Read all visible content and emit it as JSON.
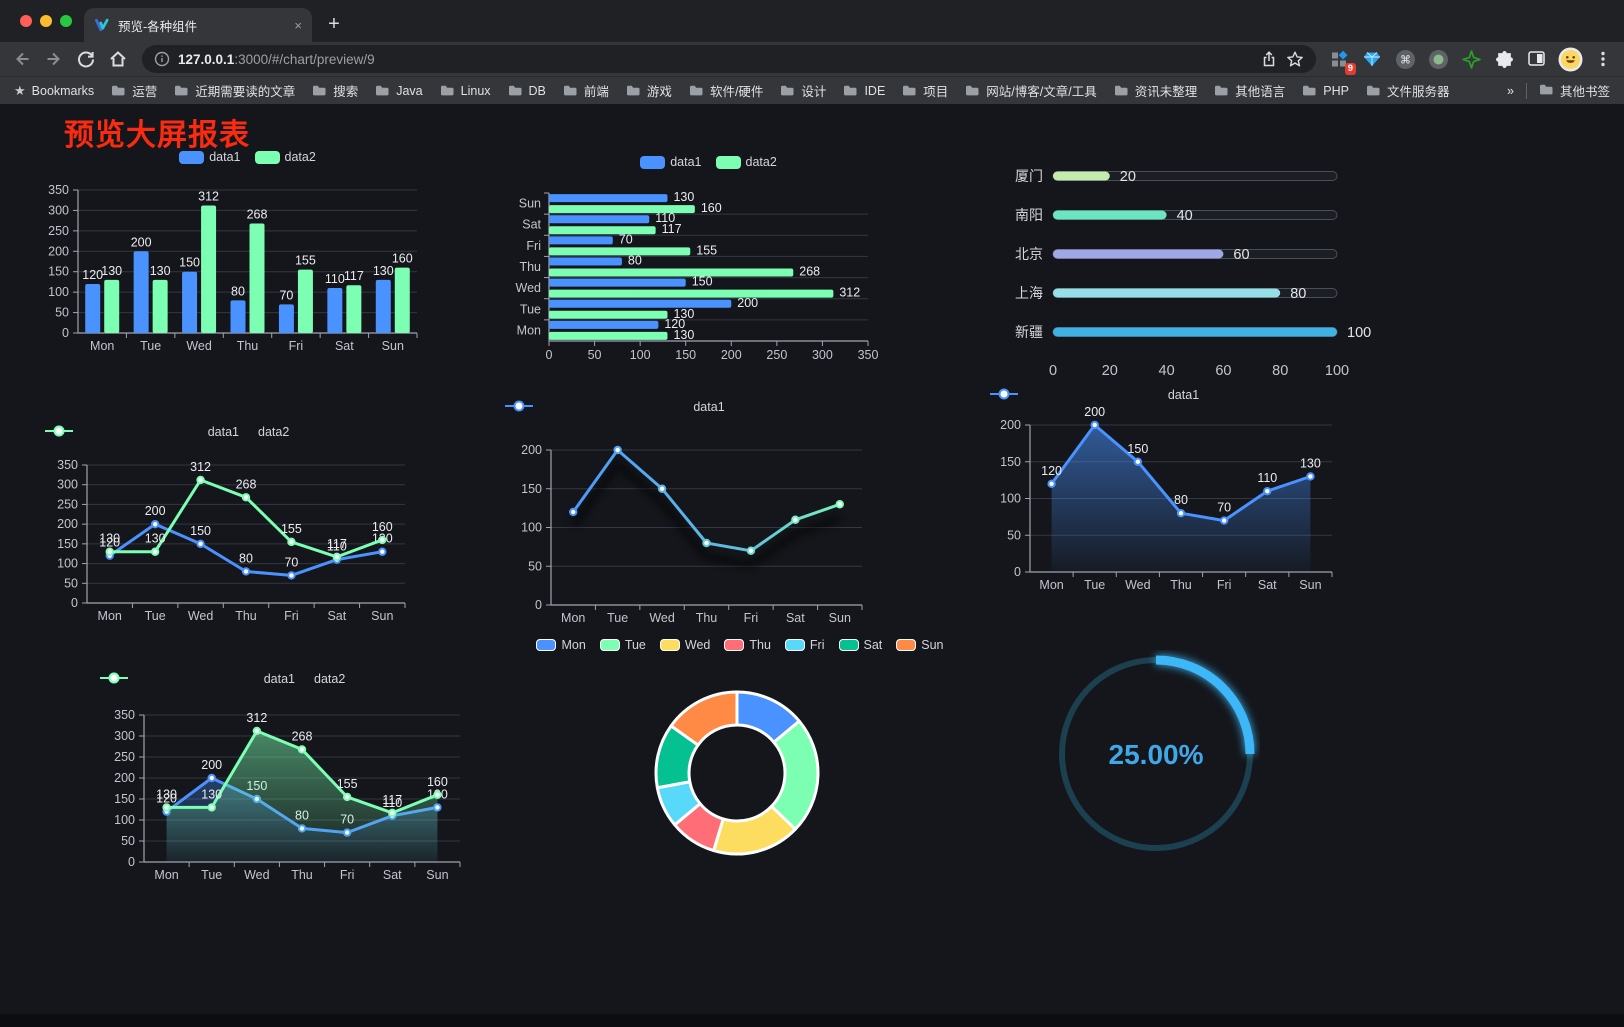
{
  "browser": {
    "traffic_lights": [
      "close",
      "minimize",
      "zoom"
    ],
    "tab": {
      "title": "预览-各种组件",
      "favicon": "v-logo-icon",
      "close_label": "×"
    },
    "new_tab_label": "+",
    "url": {
      "host": "127.0.0.1",
      "path": ":3000/#/chart/preview/9"
    },
    "nav_icons": [
      "back-arrow",
      "forward-arrow",
      "reload",
      "home"
    ],
    "urlbar_icons": [
      "info",
      "share",
      "bookmark-star"
    ],
    "action_icons": [
      {
        "name": "extension-grid",
        "badge": "9"
      },
      {
        "name": "gem"
      },
      {
        "name": "command-circle"
      },
      {
        "name": "record-circle"
      },
      {
        "name": "green-star"
      },
      {
        "name": "puzzle"
      },
      {
        "name": "reader-square"
      },
      {
        "name": "avatar-emoji"
      },
      {
        "name": "menu-kebab"
      }
    ],
    "bookmarks_bar": {
      "star_item": "Bookmarks",
      "folders": [
        "运营",
        "近期需要读的文章",
        "搜索",
        "Java",
        "Linux",
        "DB",
        "前端",
        "游戏",
        "软件/硬件",
        "设计",
        "IDE",
        "项目",
        "网站/博客/文章/工具",
        "资讯未整理",
        "其他语言",
        "PHP",
        "文件服务器"
      ],
      "overflow": "»",
      "other_bookmarks": "其他书签"
    }
  },
  "page": {
    "title": "预览大屏报表",
    "title_color": "#fa2b10",
    "background": "#14161b"
  },
  "chart_data": [
    {
      "id": "bar-vertical",
      "type": "bar",
      "categories": [
        "Mon",
        "Tue",
        "Wed",
        "Thu",
        "Fri",
        "Sat",
        "Sun"
      ],
      "series": [
        {
          "name": "data1",
          "color": "#4992ff",
          "values": [
            120,
            200,
            150,
            80,
            70,
            110,
            130
          ]
        },
        {
          "name": "data2",
          "color": "#7cffb2",
          "values": [
            130,
            130,
            312,
            268,
            155,
            117,
            160
          ]
        }
      ],
      "ylim": [
        0,
        350
      ],
      "yticks": [
        0,
        50,
        100,
        150,
        200,
        250,
        300,
        350
      ],
      "legend_position": "top",
      "grid": true,
      "value_labels": true
    },
    {
      "id": "bar-horizontal",
      "type": "bar-horizontal",
      "categories": [
        "Mon",
        "Tue",
        "Wed",
        "Thu",
        "Fri",
        "Sat",
        "Sun"
      ],
      "series": [
        {
          "name": "data1",
          "color": "#4992ff",
          "values": [
            120,
            200,
            150,
            80,
            70,
            110,
            130
          ]
        },
        {
          "name": "data2",
          "color": "#7cffb2",
          "values": [
            130,
            130,
            312,
            268,
            155,
            117,
            160
          ]
        }
      ],
      "xlim": [
        0,
        350
      ],
      "xticks": [
        0,
        50,
        100,
        150,
        200,
        250,
        300,
        350
      ],
      "legend_position": "top",
      "grid": true,
      "value_labels": true
    },
    {
      "id": "progress",
      "type": "progress-bars",
      "max": 100,
      "xticks": [
        0,
        20,
        40,
        60,
        80,
        100
      ],
      "items": [
        {
          "label": "厦门",
          "value": 20,
          "color": "#c4ebad"
        },
        {
          "label": "南阳",
          "value": 40,
          "color": "#6be6c1"
        },
        {
          "label": "北京",
          "value": 60,
          "color": "#a0a7e6"
        },
        {
          "label": "上海",
          "value": 80,
          "color": "#96dee8"
        },
        {
          "label": "新疆",
          "value": 100,
          "color": "#3fb1e3"
        }
      ]
    },
    {
      "id": "line-two",
      "type": "line",
      "categories": [
        "Mon",
        "Tue",
        "Wed",
        "Thu",
        "Fri",
        "Sat",
        "Sun"
      ],
      "series": [
        {
          "name": "data1",
          "color": "#4992ff",
          "values": [
            120,
            200,
            150,
            80,
            70,
            110,
            130
          ]
        },
        {
          "name": "data2",
          "color": "#7cffb2",
          "values": [
            130,
            130,
            312,
            268,
            155,
            117,
            160
          ]
        }
      ],
      "ylim": [
        0,
        350
      ],
      "yticks": [
        0,
        50,
        100,
        150,
        200,
        250,
        300,
        350
      ],
      "legend_position": "top",
      "grid": true,
      "value_labels": true
    },
    {
      "id": "line-gradient",
      "type": "line",
      "categories": [
        "Mon",
        "Tue",
        "Wed",
        "Thu",
        "Fri",
        "Sat",
        "Sun"
      ],
      "series": [
        {
          "name": "data1",
          "color": "#4992ff",
          "gradient": [
            "#4992ff",
            "#7cffb2"
          ],
          "values": [
            120,
            200,
            150,
            80,
            70,
            110,
            130
          ]
        }
      ],
      "ylim": [
        0,
        200
      ],
      "yticks": [
        0,
        50,
        100,
        150,
        200
      ],
      "legend_position": "top",
      "grid": true,
      "value_labels": false,
      "shadow": true
    },
    {
      "id": "area-single",
      "type": "area",
      "categories": [
        "Mon",
        "Tue",
        "Wed",
        "Thu",
        "Fri",
        "Sat",
        "Sun"
      ],
      "series": [
        {
          "name": "data1",
          "color": "#4992ff",
          "values": [
            120,
            200,
            150,
            80,
            70,
            110,
            130
          ]
        }
      ],
      "ylim": [
        0,
        200
      ],
      "yticks": [
        0,
        50,
        100,
        150,
        200
      ],
      "legend_position": "top",
      "grid": true,
      "value_labels": true
    },
    {
      "id": "area-two",
      "type": "area",
      "categories": [
        "Mon",
        "Tue",
        "Wed",
        "Thu",
        "Fri",
        "Sat",
        "Sun"
      ],
      "series": [
        {
          "name": "data1",
          "color": "#4992ff",
          "values": [
            120,
            200,
            150,
            80,
            70,
            110,
            130
          ]
        },
        {
          "name": "data2",
          "color": "#7cffb2",
          "values": [
            130,
            130,
            312,
            268,
            155,
            117,
            160
          ]
        }
      ],
      "ylim": [
        0,
        350
      ],
      "yticks": [
        0,
        50,
        100,
        150,
        200,
        250,
        300,
        350
      ],
      "legend_position": "top",
      "grid": true,
      "value_labels": true
    },
    {
      "id": "donut",
      "type": "pie",
      "categories": [
        "Mon",
        "Tue",
        "Wed",
        "Thu",
        "Fri",
        "Sat",
        "Sun"
      ],
      "values": [
        120,
        200,
        150,
        80,
        70,
        110,
        130
      ],
      "colors": [
        "#4992ff",
        "#7cffb2",
        "#fddd60",
        "#ff6e76",
        "#58d9f9",
        "#05c091",
        "#ff8a45"
      ],
      "legend_position": "top",
      "border_color": "#ffffff"
    },
    {
      "id": "gauge",
      "type": "gauge",
      "value": 25,
      "max": 100,
      "label": "25.00%",
      "color": "#3eb7f7",
      "track_color": "#1c4050",
      "text_color": "#41a8e8"
    }
  ]
}
